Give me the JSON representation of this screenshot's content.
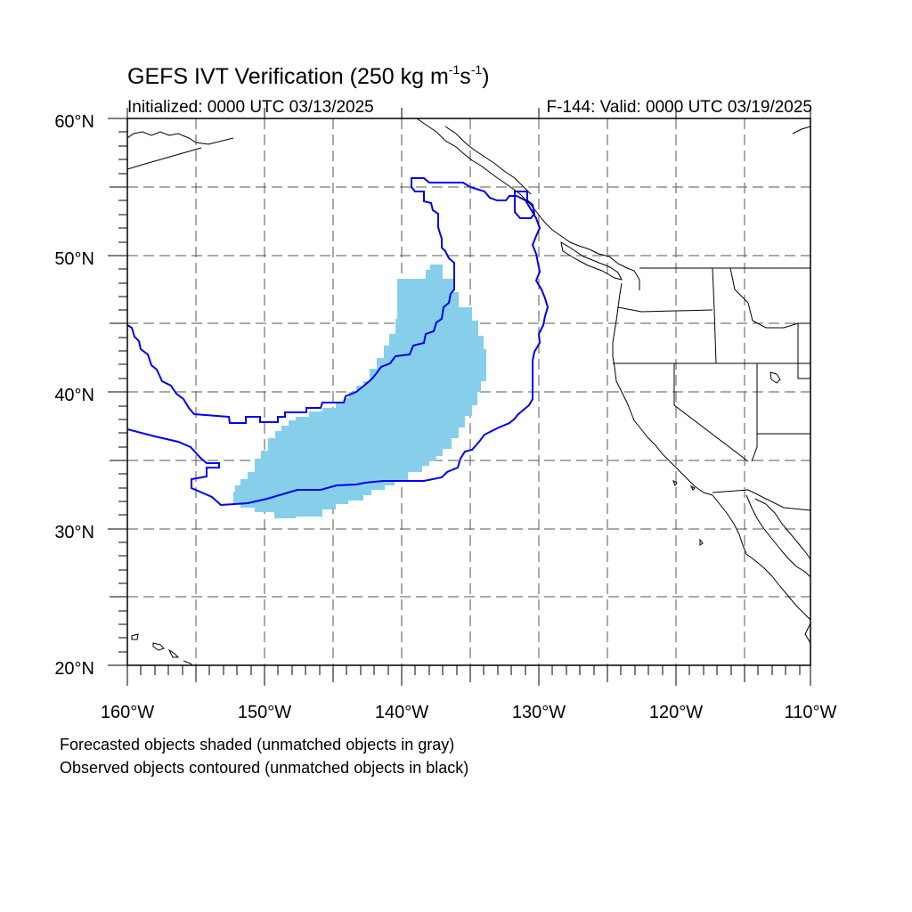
{
  "title": {
    "prefix": "GEFS IVT Verification (250 kg m",
    "sup1": "-1",
    "mid": "s",
    "sup2": "-1",
    "suffix": ")"
  },
  "initialized": "Initialized: 0000 UTC 03/13/2025",
  "valid": "F-144: Valid: 0000 UTC 03/19/2025",
  "axes": {
    "lon_labels": [
      "160°W",
      "150°W",
      "140°W",
      "130°W",
      "120°W",
      "110°W"
    ],
    "lat_labels": [
      "20°N",
      "30°N",
      "40°N",
      "50°N",
      "60°N"
    ],
    "lon_range": [
      -160,
      -110
    ],
    "lat_range": [
      20,
      60
    ],
    "gridlines": "dashed every 5°"
  },
  "legend": {
    "line1": "Forecasted objects shaded (unmatched objects in gray)",
    "line2": "Observed objects contoured (unmatched objects in black)"
  },
  "colors": {
    "forecast_fill": "#87ceeb",
    "observed_contour": "#0000ee",
    "coastline": "#000000",
    "grid": "#555555"
  }
}
